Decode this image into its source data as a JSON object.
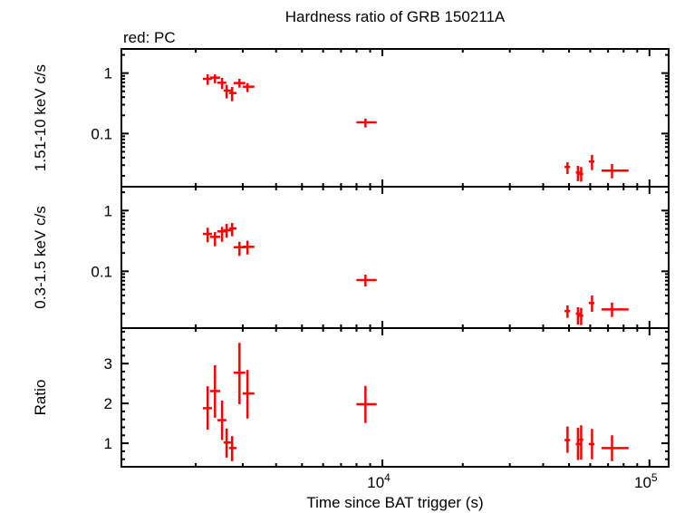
{
  "chart_data": {
    "type": "scatter",
    "title": "Hardness ratio of GRB 150211A",
    "subtitle": "red: PC",
    "xlabel": "Time since BAT trigger (s)",
    "xscale": "log",
    "xlim": [
      1054,
      118000
    ],
    "xtick_labels": [
      {
        "value": 10000,
        "base": "10",
        "exp": "4"
      },
      {
        "value": 100000,
        "base": "10",
        "exp": "5"
      }
    ],
    "series_color": "#ff0000",
    "time": {
      "x": [
        2218,
        2362,
        2512,
        2612,
        2739,
        2917,
        3126,
        8642,
        49340,
        54000,
        55500,
        60950,
        72400
      ],
      "x_lo": [
        2128,
        2264,
        2411,
        2545,
        2667,
        2774,
        2998,
        7996,
        48100,
        53000,
        54500,
        59270,
        66190
      ],
      "x_hi": [
        2302,
        2469,
        2606,
        2710,
        2843,
        3069,
        3317,
        9520,
        50470,
        55200,
        56500,
        62210,
        83540
      ]
    },
    "panels": [
      {
        "ylabel": "1.51-10 keV c/s",
        "yscale": "log",
        "ylim": [
          0.0132,
          2.51
        ],
        "yticks": [
          {
            "value": 1,
            "label": "1"
          },
          {
            "value": 0.1,
            "label": "0.1"
          }
        ],
        "y": [
          0.804,
          0.841,
          0.694,
          0.514,
          0.468,
          0.684,
          0.596,
          0.153,
          0.028,
          0.0227,
          0.0214,
          0.0344,
          0.0244
        ],
        "y_lo": [
          0.639,
          0.677,
          0.545,
          0.381,
          0.343,
          0.575,
          0.485,
          0.126,
          0.0214,
          0.0163,
          0.016,
          0.0249,
          0.0182
        ],
        "y_hi": [
          0.956,
          0.956,
          0.833,
          0.639,
          0.59,
          0.804,
          0.684,
          0.176,
          0.0336,
          0.0292,
          0.028,
          0.0443,
          0.0313
        ]
      },
      {
        "ylabel": "0.3-1.5 keV c/s",
        "yscale": "log",
        "ylim": [
          0.0116,
          2.47
        ],
        "yticks": [
          {
            "value": 1,
            "label": "1"
          },
          {
            "value": 0.1,
            "label": "0.1"
          }
        ],
        "y": [
          0.413,
          0.369,
          0.454,
          0.474,
          0.508,
          0.249,
          0.253,
          0.0716,
          0.0221,
          0.0201,
          0.0185,
          0.03,
          0.0236
        ],
        "y_lo": [
          0.301,
          0.258,
          0.306,
          0.357,
          0.377,
          0.179,
          0.189,
          0.0563,
          0.0171,
          0.0132,
          0.013,
          0.0215,
          0.0177
        ],
        "y_hi": [
          0.52,
          0.443,
          0.539,
          0.603,
          0.624,
          0.306,
          0.318,
          0.0881,
          0.0274,
          0.0256,
          0.025,
          0.0399,
          0.0305
        ]
      },
      {
        "ylabel": "Ratio",
        "yscale": "linear",
        "ylim": [
          0.41,
          3.89
        ],
        "yticks": [
          {
            "value": 3,
            "label": "3"
          },
          {
            "value": 2,
            "label": "2"
          },
          {
            "value": 1,
            "label": "1"
          }
        ],
        "y": [
          1.88,
          2.31,
          1.58,
          1.02,
          0.88,
          2.77,
          2.25,
          1.98,
          1.08,
          0.98,
          1.09,
          0.98,
          0.88
        ],
        "y_lo": [
          1.34,
          1.64,
          1.08,
          0.64,
          0.55,
          1.98,
          1.62,
          1.51,
          0.76,
          0.58,
          0.59,
          0.6,
          0.55
        ],
        "y_hi": [
          2.43,
          2.96,
          2.07,
          1.37,
          1.18,
          3.52,
          2.84,
          2.44,
          1.42,
          1.39,
          1.45,
          1.36,
          1.2
        ]
      }
    ]
  }
}
